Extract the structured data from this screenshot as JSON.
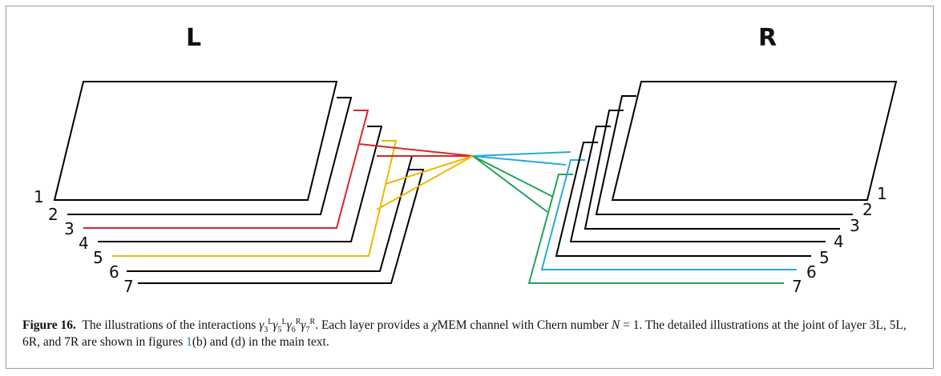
{
  "figure": {
    "left_label": "L",
    "right_label": "R",
    "left_layers": [
      "1",
      "2",
      "3",
      "4",
      "5",
      "6",
      "7"
    ],
    "right_layers": [
      "1",
      "2",
      "3",
      "4",
      "5",
      "6",
      "7"
    ],
    "colors": {
      "outline": "#000000",
      "layer_3L": "#d62728",
      "layer_5L": "#f2b600",
      "layer_6R": "#27a9e1",
      "layer_7R": "#22a35a"
    }
  },
  "caption": {
    "label": "Figure 16.",
    "text_1": "The illustrations of the interactions ",
    "gamma": "γ",
    "sub_a": "3",
    "sup_a": "L",
    "sub_b": "5",
    "sup_b": "L",
    "sub_c": "6",
    "sup_c": "R",
    "sub_d": "7",
    "sup_d": "R",
    "text_2": ". Each layer provides a ",
    "chi": "χ",
    "text_3": "MEM channel with Chern number ",
    "n_sym": "N",
    "eq": " = 1. The detailed illustrations at the joint of layer 3L, 5L, 6R, and 7R are shown in figures ",
    "ref": "1",
    "text_4": "(b) and (d) in the main text."
  }
}
